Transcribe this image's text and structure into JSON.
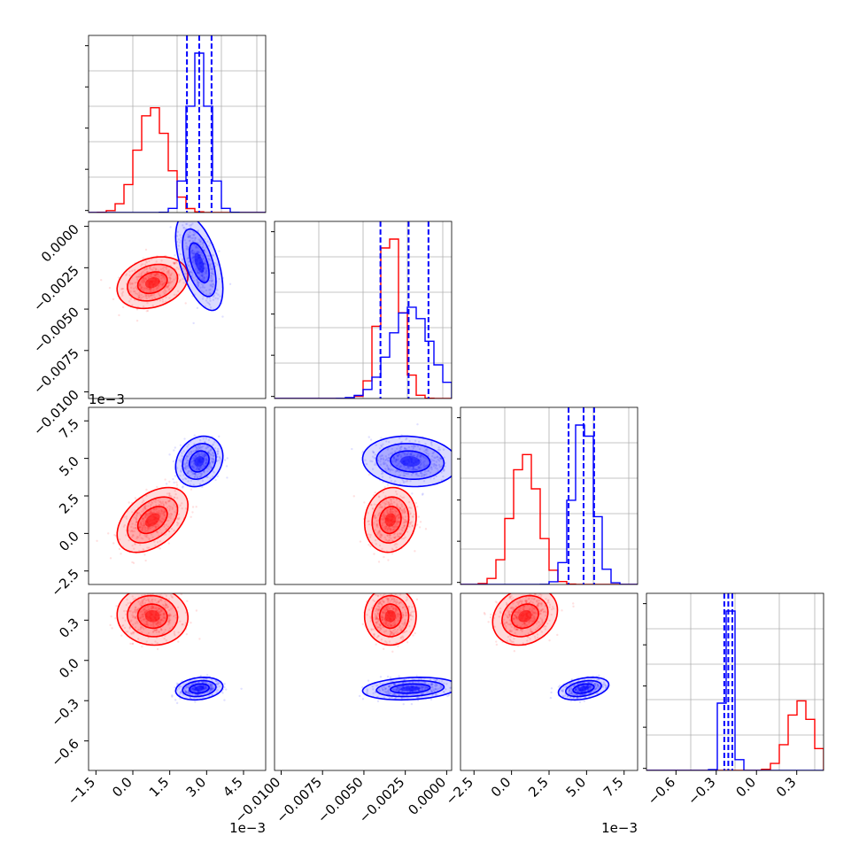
{
  "chart_data": {
    "type": "corner",
    "dims": 4,
    "grid": true,
    "series": [
      {
        "name": "",
        "color": "#ff0000",
        "mean": [
          0.0008,
          -0.0034,
          0.0009,
          0.33
        ],
        "sd": [
          0.0006,
          0.00065,
          0.0009,
          0.09
        ],
        "corr": [
          [
            1,
            0.25,
            0.45,
            -0.05
          ],
          [
            0.25,
            1,
            0.1,
            0.0
          ],
          [
            0.45,
            0.1,
            1,
            0.2
          ],
          [
            -0.05,
            0.0,
            0.2,
            1
          ]
        ]
      },
      {
        "name": "",
        "color": "#0000ff",
        "mean": [
          0.0027,
          -0.0022,
          0.0048,
          -0.21
        ],
        "sd": [
          0.0004,
          0.0012,
          0.0007,
          0.035
        ],
        "corr": [
          [
            1,
            -0.55,
            0.2,
            0.2
          ],
          [
            -0.55,
            1,
            -0.1,
            0.2
          ],
          [
            0.2,
            -0.1,
            1,
            0.35
          ],
          [
            0.2,
            0.2,
            0.35,
            1
          ]
        ]
      }
    ],
    "quantile_lines": {
      "color": "#0000ff",
      "dim0": [
        0.0022,
        0.0027,
        0.0032
      ],
      "dim1": [
        -0.004,
        -0.0023,
        -0.0011
      ],
      "dim2": [
        0.0038,
        0.0048,
        0.0055
      ],
      "dim3": [
        -0.24,
        -0.21,
        -0.18
      ]
    },
    "axes": [
      {
        "range": [
          -0.0018,
          0.0054
        ],
        "ticks": [
          -0.0015,
          0,
          0.0015,
          0.003,
          0.0045
        ],
        "tick_labels": [
          "−1.5",
          "0.0",
          "1.5",
          "3.0",
          "4.5"
        ],
        "offset_label": "1e−3"
      },
      {
        "range": [
          -0.0104,
          0.0003
        ],
        "ticks": [
          0,
          -0.0025,
          -0.005,
          -0.0075,
          -0.01
        ],
        "tick_labels": [
          "0.0000",
          "−0.0025",
          "−0.0050",
          "−0.0075",
          "−0.0100"
        ],
        "offset_label": ""
      },
      {
        "range": [
          -0.0034,
          0.0084
        ],
        "ticks": [
          -0.0025,
          0,
          0.0025,
          0.005,
          0.0075
        ],
        "tick_labels": [
          "−2.5",
          "0.0",
          "2.5",
          "5.0",
          "7.5"
        ],
        "offset_label": "1e−3"
      },
      {
        "range": [
          -0.82,
          0.5
        ],
        "ticks": [
          0.3,
          0.0,
          -0.3,
          -0.6
        ],
        "tick_labels": [
          "0.3",
          "0.0",
          "−0.3",
          "−0.6"
        ],
        "offset_label": ""
      }
    ],
    "x_tick_labels": [
      [
        "−1.5",
        "0.0",
        "1.5",
        "3.0",
        "4.5"
      ],
      [
        "−0.0100",
        "−0.0075",
        "−0.0050",
        "−0.0025",
        "0.0000"
      ],
      [
        "−2.5",
        "0.0",
        "2.5",
        "5.0",
        "7.5"
      ],
      [
        "−0.6",
        "−0.3",
        "0.0",
        "0.3"
      ]
    ]
  }
}
